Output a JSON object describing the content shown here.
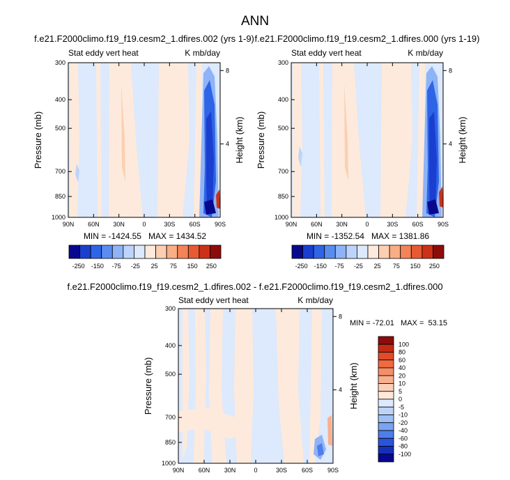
{
  "figure_title": "ANN",
  "chart_data": [
    {
      "type": "heatmap",
      "title": "f.e21.F2000climo.f19_f19.cesm2_1.dfires.002 (yrs 1-9)",
      "left_subtitle": "Stat eddy vert heat",
      "right_subtitle": "K mb/day",
      "ylabel": "Pressure (mb)",
      "y2label": "Height (km)",
      "x_ticks": [
        "90N",
        "60N",
        "30N",
        "0",
        "30S",
        "60S",
        "90S"
      ],
      "x_tick_values": [
        90,
        60,
        30,
        0,
        -30,
        -60,
        -90
      ],
      "y_ticks": [
        "300",
        "400",
        "500",
        "700",
        "850",
        "1000"
      ],
      "y_tick_values": [
        300,
        400,
        500,
        700,
        850,
        1000
      ],
      "y2_ticks": [
        "8",
        "4"
      ],
      "y2_tick_values": [
        8,
        4
      ],
      "stats": "MIN = -1424.55   MAX = 1434.52",
      "colorbar": {
        "labels": [
          "-250",
          "-150",
          "-75",
          "-25",
          "25",
          "75",
          "150",
          "250"
        ],
        "colors": [
          "#08088f",
          "#1a3fd0",
          "#2e64e6",
          "#5a8cf0",
          "#8fb3f7",
          "#bcd4fa",
          "#dde9fc",
          "#fdeadc",
          "#fccfb2",
          "#f9ae84",
          "#f48357",
          "#e85a33",
          "#cc3117",
          "#8e0b0b"
        ]
      }
    },
    {
      "type": "heatmap",
      "title": "f.e21.F2000climo.f19_f19.cesm2_1.dfires.000 (yrs 1-19)",
      "left_subtitle": "Stat eddy vert heat",
      "right_subtitle": "K mb/day",
      "ylabel": "Pressure (mb)",
      "y2label": "Height (km)",
      "x_ticks": [
        "90N",
        "60N",
        "30N",
        "0",
        "30S",
        "60S",
        "90S"
      ],
      "x_tick_values": [
        90,
        60,
        30,
        0,
        -30,
        -60,
        -90
      ],
      "y_ticks": [
        "300",
        "400",
        "500",
        "700",
        "850",
        "1000"
      ],
      "y_tick_values": [
        300,
        400,
        500,
        700,
        850,
        1000
      ],
      "y2_ticks": [
        "8",
        "4"
      ],
      "y2_tick_values": [
        8,
        4
      ],
      "stats": "MIN = -1352.54   MAX = 1381.86",
      "colorbar": {
        "labels": [
          "-250",
          "-150",
          "-75",
          "-25",
          "25",
          "75",
          "150",
          "250"
        ],
        "colors": [
          "#08088f",
          "#1a3fd0",
          "#2e64e6",
          "#5a8cf0",
          "#8fb3f7",
          "#bcd4fa",
          "#dde9fc",
          "#fdeadc",
          "#fccfb2",
          "#f9ae84",
          "#f48357",
          "#e85a33",
          "#cc3117",
          "#8e0b0b"
        ]
      }
    },
    {
      "type": "heatmap",
      "title": "f.e21.F2000climo.f19_f19.cesm2_1.dfires.002 - f.e21.F2000climo.f19_f19.cesm2_1.dfires.000",
      "left_subtitle": "Stat eddy vert heat",
      "right_subtitle": "K mb/day",
      "ylabel": "Pressure (mb)",
      "y2label": "Height (km)",
      "x_ticks": [
        "90N",
        "60N",
        "30N",
        "0",
        "30S",
        "60S",
        "90S"
      ],
      "x_tick_values": [
        90,
        60,
        30,
        0,
        -30,
        -60,
        -90
      ],
      "y_ticks": [
        "300",
        "400",
        "500",
        "700",
        "850",
        "1000"
      ],
      "y_tick_values": [
        300,
        400,
        500,
        700,
        850,
        1000
      ],
      "y2_ticks": [
        "8",
        "4"
      ],
      "y2_tick_values": [
        8,
        4
      ],
      "stats": "MIN = -72.01   MAX =  53.15",
      "colorbar": {
        "labels": [
          "100",
          "80",
          "60",
          "40",
          "20",
          "10",
          "5",
          "0",
          "-5",
          "-10",
          "-20",
          "-40",
          "-60",
          "-80",
          "-100"
        ],
        "colors": [
          "#8e0b0b",
          "#c42a14",
          "#e04b2a",
          "#f06a42",
          "#f58e66",
          "#f9b08e",
          "#fcd0b8",
          "#fde8da",
          "#dde9fc",
          "#bcd4fa",
          "#9fc0f7",
          "#7aa3f2",
          "#4f7eea",
          "#2a55db",
          "#1530b8",
          "#08088f"
        ]
      }
    }
  ]
}
